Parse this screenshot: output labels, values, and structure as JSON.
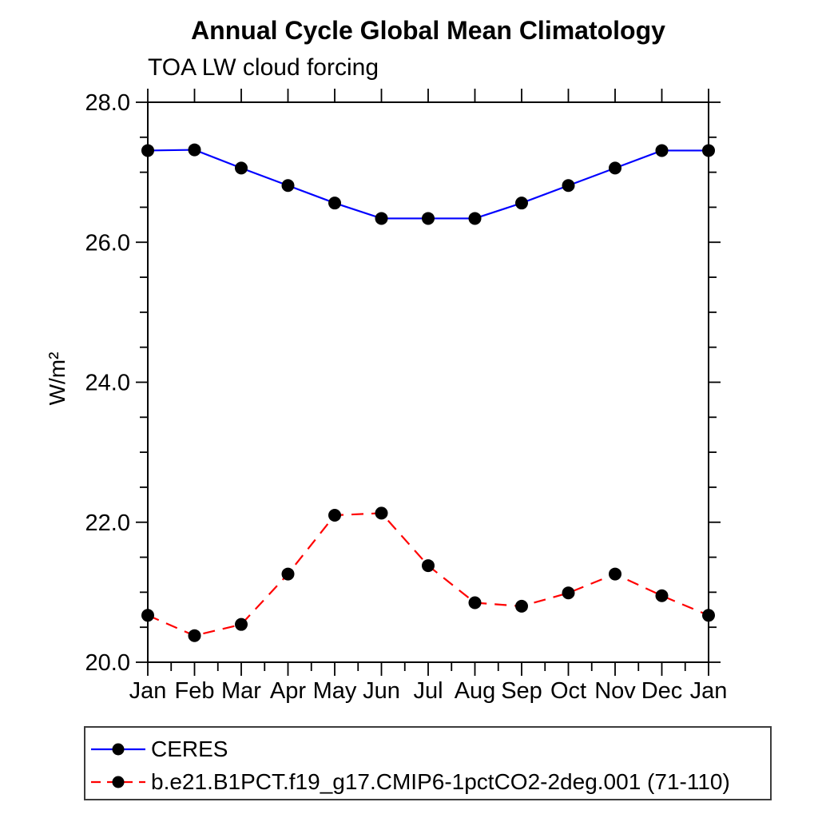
{
  "page": {
    "background_color": "#ffffff"
  },
  "chart_data": {
    "type": "line",
    "title": "Annual Cycle Global Mean Climatology",
    "subtitle": "TOA LW cloud forcing",
    "xlabel": "",
    "ylabel": "W/m²",
    "categories": [
      "Jan",
      "Feb",
      "Mar",
      "Apr",
      "May",
      "Jun",
      "Jul",
      "Aug",
      "Sep",
      "Oct",
      "Nov",
      "Dec",
      "Jan"
    ],
    "ylim": [
      20.0,
      28.0
    ],
    "yticks": [
      {
        "value": 20.0,
        "label": "20.0"
      },
      {
        "value": 22.0,
        "label": "22.0"
      },
      {
        "value": 24.0,
        "label": "24.0"
      },
      {
        "value": 26.0,
        "label": "26.0"
      },
      {
        "value": 28.0,
        "label": "28.0"
      }
    ],
    "y_minor_tick_interval": 0.5,
    "x_minor_ticks": "half-month positions on bottom axis",
    "grid": false,
    "frame": true,
    "legend_position": "below-plot-left",
    "axis_color": "#000000",
    "marker_color": "#000000",
    "series": [
      {
        "name": "CERES",
        "color": "#0000ff",
        "line_style": "solid",
        "marker": "filled-circle",
        "values": [
          27.31,
          27.32,
          27.06,
          26.81,
          26.56,
          26.34,
          26.34,
          26.34,
          26.56,
          26.81,
          27.06,
          27.31,
          27.31
        ]
      },
      {
        "name": "b.e21.B1PCT.f19_g17.CMIP6-1pctCO2-2deg.001 (71-110)",
        "color": "#ff0000",
        "line_style": "dashed",
        "marker": "filled-circle",
        "values": [
          20.67,
          20.38,
          20.54,
          21.26,
          22.1,
          22.13,
          21.38,
          20.85,
          20.8,
          20.99,
          21.26,
          20.95,
          20.67
        ]
      }
    ]
  }
}
